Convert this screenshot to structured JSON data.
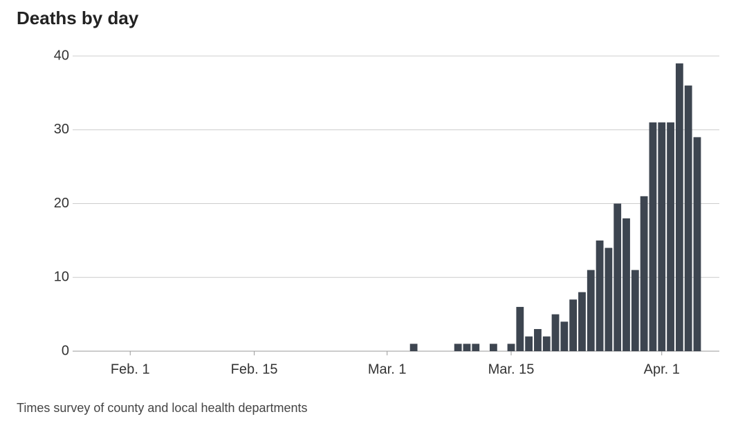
{
  "chart_data": {
    "type": "bar",
    "title": "Deaths by day",
    "source": "Times survey of county and local health departments",
    "categories": [
      null,
      null,
      null,
      null,
      null,
      null,
      "Feb. 1",
      null,
      null,
      null,
      null,
      null,
      null,
      null,
      null,
      null,
      null,
      null,
      null,
      null,
      "Feb. 15",
      null,
      null,
      null,
      null,
      null,
      null,
      null,
      null,
      null,
      null,
      null,
      null,
      null,
      null,
      "Mar. 1",
      null,
      null,
      null,
      null,
      null,
      null,
      null,
      null,
      null,
      null,
      null,
      null,
      null,
      "Mar. 15",
      null,
      null,
      null,
      null,
      null,
      null,
      null,
      null,
      null,
      null,
      null,
      null,
      null,
      null,
      null,
      null,
      "Apr. 1",
      null,
      null,
      null,
      null,
      null,
      null
    ],
    "values": [
      0,
      0,
      0,
      0,
      0,
      0,
      0,
      0,
      0,
      0,
      0,
      0,
      0,
      0,
      0,
      0,
      0,
      0,
      0,
      0,
      0,
      0,
      0,
      0,
      0,
      0,
      0,
      0,
      0,
      0,
      0,
      0,
      0,
      0,
      0,
      0,
      0,
      0,
      1,
      0,
      0,
      0,
      0,
      1,
      1,
      1,
      0,
      1,
      0,
      1,
      6,
      2,
      3,
      2,
      5,
      4,
      7,
      8,
      11,
      15,
      14,
      20,
      18,
      11,
      21,
      31,
      31,
      31,
      39,
      36,
      29,
      null,
      null
    ],
    "color": "#3d4550",
    "ylim": [
      0,
      40
    ],
    "yticks": [
      0,
      10,
      20,
      30,
      40
    ],
    "grid": true
  }
}
